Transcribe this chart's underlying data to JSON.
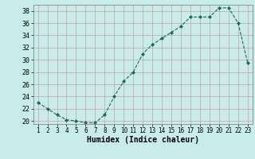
{
  "x": [
    1,
    2,
    3,
    4,
    5,
    6,
    7,
    8,
    9,
    10,
    11,
    12,
    13,
    14,
    15,
    16,
    17,
    18,
    19,
    20,
    21,
    22,
    23
  ],
  "y": [
    23,
    22,
    21,
    20.2,
    20,
    19.7,
    19.7,
    21,
    24,
    26.5,
    28,
    31,
    32.5,
    33.5,
    34.5,
    35.5,
    37,
    37,
    37,
    38.5,
    38.5,
    36,
    29.5
  ],
  "line_color": "#1a6b5a",
  "marker": "D",
  "marker_size": 2.0,
  "bg_color": "#c8ecea",
  "grid_color": "#b8ceca",
  "xlabel": "Humidex (Indice chaleur)",
  "xlabel_fontsize": 7,
  "tick_fontsize": 6,
  "xlim": [
    0.5,
    23.5
  ],
  "ylim": [
    19.5,
    39.0
  ],
  "yticks": [
    20,
    22,
    24,
    26,
    28,
    30,
    32,
    34,
    36,
    38
  ],
  "xticks": [
    1,
    2,
    3,
    4,
    5,
    6,
    7,
    8,
    9,
    10,
    11,
    12,
    13,
    14,
    15,
    16,
    17,
    18,
    19,
    20,
    21,
    22,
    23
  ]
}
